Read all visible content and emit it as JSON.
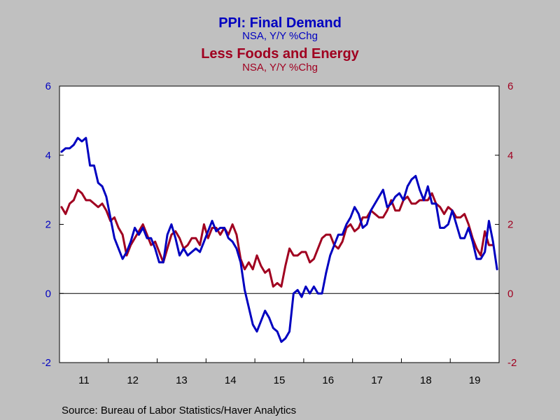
{
  "colors": {
    "background": "#c0c0c0",
    "plot_background": "#ffffff",
    "series1": "#0000c0",
    "series2": "#a00020",
    "axis": "#000000"
  },
  "source_text": "Source:  Bureau of Labor Statistics/Haver Analytics",
  "chart_data": {
    "type": "line",
    "title": "PPI: Final Demand",
    "subtitle": "NSA, Y/Y %Chg",
    "title2": "Less Foods and Energy",
    "subtitle2": "NSA, Y/Y %Chg",
    "xlabel": "",
    "ylabel": "",
    "x_start": "2011-01",
    "x_end": "2019-12",
    "x_tick_labels": [
      "11",
      "12",
      "13",
      "14",
      "15",
      "16",
      "17",
      "18",
      "19"
    ],
    "ylim": [
      -2,
      6
    ],
    "y_ticks": [
      -2,
      0,
      2,
      4,
      6
    ],
    "y_right_ticks": [
      -2,
      0,
      2,
      4,
      6
    ],
    "grid": false,
    "zero_line": true,
    "series": [
      {
        "name": "PPI: Final Demand",
        "color": "#0000c0",
        "x_start": "2011-01",
        "values": [
          4.1,
          4.2,
          4.2,
          4.3,
          4.5,
          4.4,
          4.5,
          3.7,
          3.7,
          3.2,
          3.1,
          2.8,
          2.2,
          1.6,
          1.3,
          1.0,
          1.2,
          1.5,
          1.9,
          1.7,
          1.9,
          1.6,
          1.6,
          1.3,
          0.9,
          0.9,
          1.7,
          2.0,
          1.6,
          1.1,
          1.3,
          1.1,
          1.2,
          1.3,
          1.2,
          1.5,
          1.8,
          2.1,
          1.8,
          1.9,
          1.9,
          1.6,
          1.5,
          1.3,
          0.9,
          0.1,
          -0.4,
          -0.9,
          -1.1,
          -0.8,
          -0.5,
          -0.7,
          -1.0,
          -1.1,
          -1.4,
          -1.3,
          -1.1,
          0.0,
          0.1,
          -0.1,
          0.2,
          0.0,
          0.2,
          0.0,
          0.0,
          0.6,
          1.1,
          1.4,
          1.7,
          1.7,
          2.0,
          2.2,
          2.5,
          2.3,
          1.9,
          2.0,
          2.4,
          2.6,
          2.8,
          3.0,
          2.5,
          2.6,
          2.8,
          2.9,
          2.7,
          3.1,
          3.3,
          3.4,
          3.0,
          2.7,
          3.1,
          2.6,
          2.6,
          1.9,
          1.9,
          2.0,
          2.4,
          2.0,
          1.6,
          1.6,
          1.9,
          1.5,
          1.0,
          1.0,
          1.2,
          2.1,
          1.5,
          0.7
        ]
      },
      {
        "name": "Less Foods and Energy",
        "color": "#a00020",
        "x_start": "2011-01",
        "values": [
          2.5,
          2.3,
          2.6,
          2.7,
          3.0,
          2.9,
          2.7,
          2.7,
          2.6,
          2.5,
          2.6,
          2.4,
          2.1,
          2.2,
          1.9,
          1.7,
          1.1,
          1.4,
          1.6,
          1.8,
          2.0,
          1.7,
          1.4,
          1.5,
          1.2,
          0.9,
          1.3,
          1.7,
          1.8,
          1.6,
          1.3,
          1.4,
          1.6,
          1.6,
          1.4,
          2.0,
          1.6,
          1.9,
          1.9,
          1.7,
          1.9,
          1.7,
          2.0,
          1.7,
          1.0,
          0.7,
          0.9,
          0.7,
          1.1,
          0.8,
          0.6,
          0.7,
          0.2,
          0.3,
          0.2,
          0.8,
          1.3,
          1.1,
          1.1,
          1.2,
          1.2,
          0.9,
          1.0,
          1.3,
          1.6,
          1.7,
          1.7,
          1.4,
          1.3,
          1.5,
          1.9,
          2.0,
          1.8,
          1.9,
          2.2,
          2.2,
          2.4,
          2.3,
          2.2,
          2.2,
          2.4,
          2.7,
          2.4,
          2.4,
          2.7,
          2.8,
          2.6,
          2.6,
          2.7,
          2.7,
          2.7,
          2.9,
          2.6,
          2.5,
          2.3,
          2.5,
          2.4,
          2.2,
          2.2,
          2.3,
          2.0,
          1.6,
          1.3,
          1.1,
          1.8,
          1.4,
          1.4
        ]
      }
    ]
  }
}
